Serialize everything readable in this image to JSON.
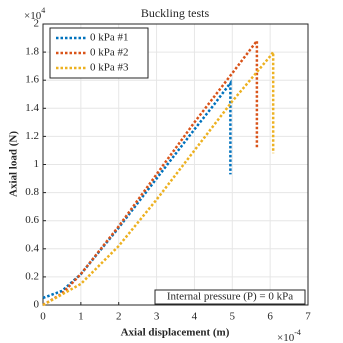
{
  "chart_data": {
    "type": "line",
    "title": "Buckling tests",
    "x_label": "Axial displacement (m)",
    "y_label": "Axial load (N)",
    "x_multiplier": {
      "base": "×10",
      "power": "-4"
    },
    "y_multiplier": {
      "base": "×10",
      "power": "4"
    },
    "annotation": "Internal pressure (P) = 0 kPa",
    "xlim": [
      0,
      7
    ],
    "ylim": [
      0,
      2
    ],
    "xticks": [
      0,
      1,
      2,
      3,
      4,
      5,
      6,
      7
    ],
    "yticks": [
      0,
      0.2,
      0.4,
      0.6,
      0.8,
      1,
      1.2,
      1.4,
      1.6,
      1.8,
      2
    ],
    "grid": true,
    "legend": "upper left",
    "series": [
      {
        "name": "0 kPa #1",
        "color": "#0072bd",
        "x": [
          0,
          0.5,
          1,
          2,
          3,
          4,
          4.5,
          4.95,
          4.95
        ],
        "values": [
          0.05,
          0.1,
          0.22,
          0.55,
          0.9,
          1.25,
          1.42,
          1.58,
          0.93
        ]
      },
      {
        "name": "0 kPa #2",
        "color": "#d95319",
        "x": [
          0,
          0.5,
          1,
          2,
          3,
          4,
          5,
          5.65,
          5.65
        ],
        "values": [
          0,
          0.08,
          0.22,
          0.56,
          0.93,
          1.3,
          1.65,
          1.88,
          1.12
        ]
      },
      {
        "name": "0 kPa #3",
        "color": "#edb120",
        "x": [
          0,
          1,
          2,
          3,
          4,
          5,
          6,
          6.08,
          6.08
        ],
        "values": [
          0,
          0.15,
          0.42,
          0.75,
          1.1,
          1.45,
          1.77,
          1.8,
          1.08
        ]
      }
    ]
  }
}
